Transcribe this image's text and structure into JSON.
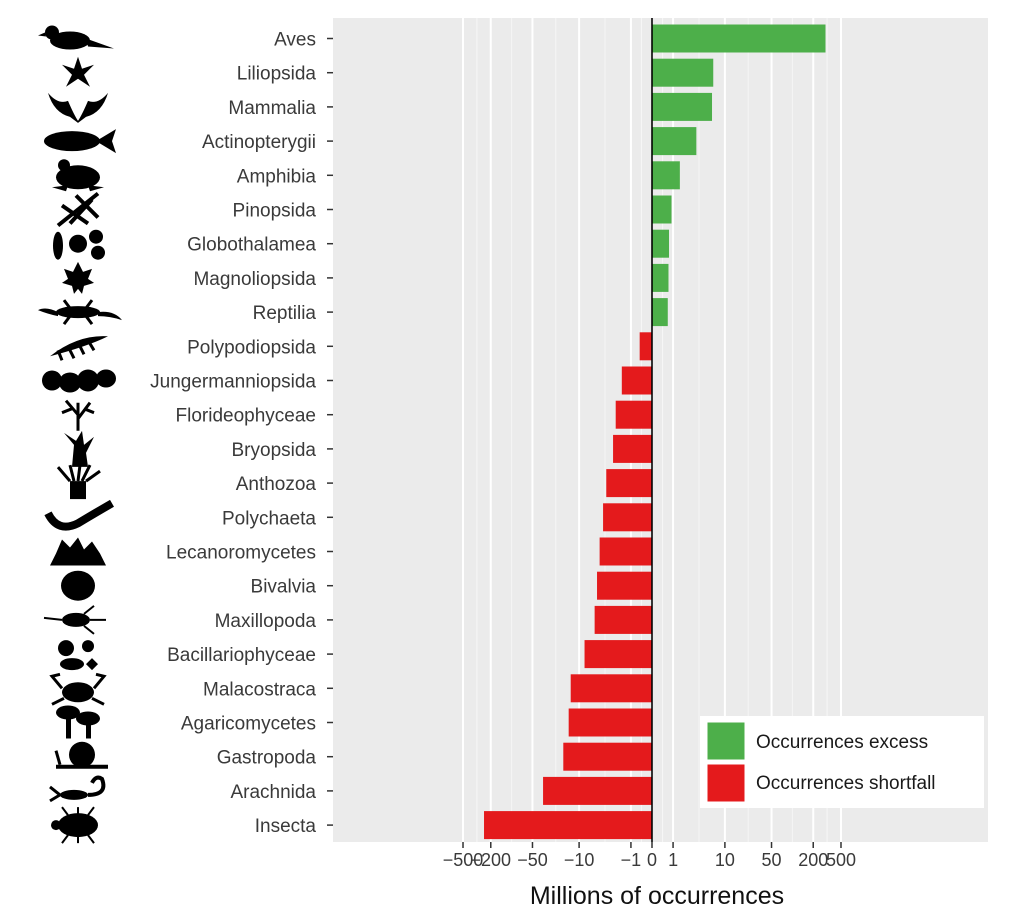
{
  "chart_data": {
    "type": "bar",
    "orientation": "horizontal",
    "categories": [
      "Aves",
      "Liliopsida",
      "Mammalia",
      "Actinopterygii",
      "Amphibia",
      "Pinopsida",
      "Globothalamea",
      "Magnoliopsida",
      "Reptilia",
      "Polypodiopsida",
      "Jungermanniopsida",
      "Florideophyceae",
      "Bryopsida",
      "Anthozoa",
      "Polychaeta",
      "Lecanoromycetes",
      "Bivalvia",
      "Maxillopoda",
      "Bacillariophyceae",
      "Malacostraca",
      "Agaricomycetes",
      "Gastropoda",
      "Arachnida",
      "Insecta"
    ],
    "values": [
      300,
      6.5,
      6.2,
      3.3,
      1.5,
      0.9,
      0.75,
      0.72,
      0.68,
      -0.5,
      -1.7,
      -2.3,
      -2.6,
      -3.5,
      -4.0,
      -4.6,
      -5.1,
      -5.6,
      -8.2,
      -13.5,
      -14.5,
      -17.5,
      -35,
      -250
    ],
    "series": [
      {
        "name": "Occurrences excess",
        "color": "#4daf4a"
      },
      {
        "name": "Occurrences shortfall",
        "color": "#e41a1c"
      }
    ],
    "x_tick_values": [
      -500,
      -200,
      -50,
      -10,
      -1,
      0,
      1,
      10,
      50,
      200,
      500
    ],
    "x_tick_labels": [
      "−500",
      "−200",
      "−50",
      "−10",
      "−1",
      "0",
      "1",
      "10",
      "50",
      "200",
      "500"
    ],
    "x_scale": "pseudo-log (symmetric)",
    "xlim": [
      -550,
      550
    ],
    "xlabel": "Millions of occurrences",
    "ylabel": "",
    "title": "",
    "grid": true,
    "legend_position": "bottom-right",
    "icons": [
      "bird-icon",
      "lily-icon",
      "bat-icon",
      "fish-icon",
      "frog-icon",
      "pine-icon",
      "foraminifera-icon",
      "maple-leaf-icon",
      "lizard-icon",
      "fern-icon",
      "liverwort-icon",
      "red-alga-icon",
      "moss-icon",
      "anemone-icon",
      "worm-icon",
      "lichen-icon",
      "clam-icon",
      "copepod-icon",
      "diatom-icon",
      "crab-icon",
      "mushroom-icon",
      "snail-icon",
      "scorpion-icon",
      "beetle-icon"
    ]
  },
  "colors": {
    "panel_background": "#ebebeb",
    "grid": "#ffffff",
    "zero_line": "#000000",
    "excess": "#4daf4a",
    "shortfall": "#e41a1c"
  }
}
